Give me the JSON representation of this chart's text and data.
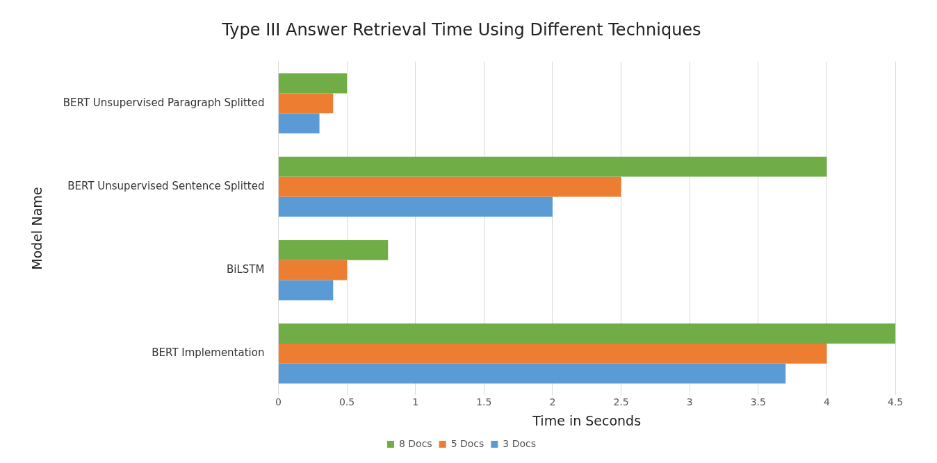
{
  "chart_data": {
    "type": "bar",
    "orientation": "horizontal",
    "title": "Type III Answer Retrieval Time Using Different Techniques",
    "xlabel": "Time in Seconds",
    "ylabel": "Model Name",
    "categories": [
      "BERT Unsupervised Paragraph Splitted",
      "BERT Unsupervised Sentence Splitted",
      "BiLSTM",
      "BERT Implementation"
    ],
    "series": [
      {
        "name": "8 Docs",
        "color": "#70ad47",
        "values": [
          0.5,
          4.0,
          0.8,
          4.5
        ]
      },
      {
        "name": "5 Docs",
        "color": "#ed7d31",
        "values": [
          0.4,
          2.5,
          0.5,
          4.0
        ]
      },
      {
        "name": "3 Docs",
        "color": "#5b9bd5",
        "values": [
          0.3,
          2.0,
          0.4,
          3.7
        ]
      }
    ],
    "xlim": [
      0,
      4.5
    ],
    "xticks": [
      0,
      0.5,
      1,
      1.5,
      2,
      2.5,
      3,
      3.5,
      4,
      4.5
    ],
    "grid": "x",
    "legend": "bottom"
  }
}
